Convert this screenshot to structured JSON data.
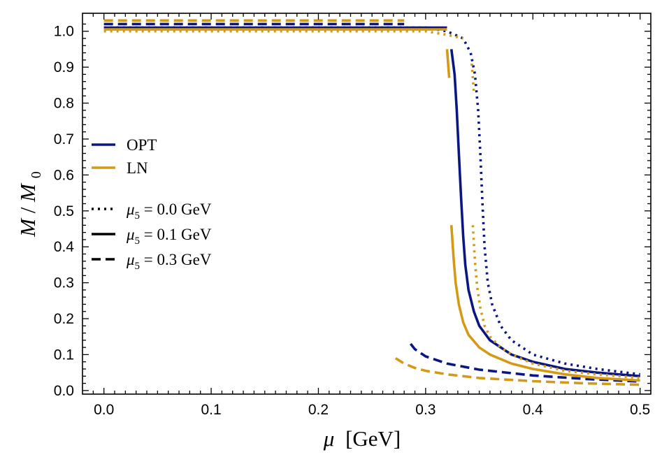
{
  "chart_data": {
    "type": "line",
    "title": "",
    "xlabel": "μ [GeV]",
    "xlabel_main": "μ",
    "xlabel_unit": "[GeV]",
    "ylabel": "M/M0",
    "ylabel_parts": {
      "m": "M",
      "slash": "/",
      "m0": "M",
      "sub": "0"
    },
    "xlim": [
      -0.02,
      0.51
    ],
    "ylim": [
      -0.01,
      1.05
    ],
    "xticks": [
      0.0,
      0.1,
      0.2,
      0.3,
      0.4,
      0.5
    ],
    "xtick_labels": [
      "0.0",
      "0.1",
      "0.2",
      "0.3",
      "0.4",
      "0.5"
    ],
    "yticks": [
      0.0,
      0.1,
      0.2,
      0.3,
      0.4,
      0.5,
      0.6,
      0.7,
      0.8,
      0.9,
      1.0
    ],
    "ytick_labels": [
      "0.0",
      "0.1",
      "0.2",
      "0.3",
      "0.4",
      "0.5",
      "0.6",
      "0.7",
      "0.8",
      "0.9",
      "1.0"
    ],
    "grid": false,
    "legend_position": "center-left",
    "legend_color": [
      {
        "name": "OPT",
        "color": "#0a1783"
      },
      {
        "name": "LN",
        "color": "#d49a16"
      }
    ],
    "legend_style": [
      {
        "sym": "μ",
        "sub": "5",
        "eq": " = 0.0 GeV",
        "dash": "dotted"
      },
      {
        "sym": "μ",
        "sub": "5",
        "eq": " = 0.1 GeV",
        "dash": "solid"
      },
      {
        "sym": "μ",
        "sub": "5",
        "eq": " = 0.3 GeV",
        "dash": "dashed"
      }
    ],
    "series": [
      {
        "model": "OPT",
        "mu5": "0.0 GeV",
        "color": "#0a1783",
        "dash": "dotted",
        "x": [
          0.0,
          0.1,
          0.2,
          0.3,
          0.32,
          0.335,
          0.342,
          0.346,
          0.349,
          0.351,
          0.353,
          0.355,
          0.358,
          0.362,
          0.37,
          0.38,
          0.4,
          0.43,
          0.46,
          0.5
        ],
        "y": [
          1.01,
          1.01,
          1.01,
          1.01,
          1.0,
          0.98,
          0.94,
          0.88,
          0.78,
          0.66,
          0.52,
          0.4,
          0.3,
          0.24,
          0.18,
          0.14,
          0.1,
          0.075,
          0.06,
          0.045
        ]
      },
      {
        "model": "OPT",
        "mu5": "0.1 GeV",
        "color": "#0a1783",
        "dash": "solid",
        "x": [
          0.0,
          0.1,
          0.2,
          0.3,
          0.32
        ],
        "y": [
          1.01,
          1.01,
          1.01,
          1.01,
          1.01
        ]
      },
      {
        "model": "OPT",
        "mu5": "0.1 GeV",
        "color": "#0a1783",
        "dash": "solid",
        "x": [
          0.324,
          0.327,
          0.329,
          0.331,
          0.333,
          0.335,
          0.337,
          0.34,
          0.345,
          0.35,
          0.36,
          0.38,
          0.4,
          0.43,
          0.46,
          0.5
        ],
        "y": [
          0.95,
          0.88,
          0.78,
          0.66,
          0.54,
          0.43,
          0.35,
          0.28,
          0.22,
          0.18,
          0.14,
          0.1,
          0.08,
          0.06,
          0.05,
          0.04
        ]
      },
      {
        "model": "OPT",
        "mu5": "0.3 GeV",
        "color": "#0a1783",
        "dash": "dashed",
        "x": [
          0.0,
          0.1,
          0.2,
          0.28
        ],
        "y": [
          1.02,
          1.02,
          1.02,
          1.02
        ]
      },
      {
        "model": "OPT",
        "mu5": "0.3 GeV",
        "color": "#0a1783",
        "dash": "dashed",
        "x": [
          0.286,
          0.29,
          0.3,
          0.32,
          0.35,
          0.4,
          0.45,
          0.5
        ],
        "y": [
          0.13,
          0.115,
          0.095,
          0.075,
          0.058,
          0.042,
          0.032,
          0.025
        ]
      },
      {
        "model": "LN",
        "mu5": "0.0 GeV",
        "color": "#d49a16",
        "dash": "dotted",
        "x": [
          0.0,
          0.1,
          0.2,
          0.3,
          0.32,
          0.335
        ],
        "y": [
          1.0,
          1.0,
          1.0,
          1.0,
          0.99,
          0.98
        ]
      },
      {
        "model": "LN",
        "mu5": "0.0 GeV",
        "color": "#d49a16",
        "dash": "dotted",
        "x": [
          0.343,
          0.344,
          0.345
        ],
        "y": [
          0.91,
          0.87,
          0.83
        ]
      },
      {
        "model": "LN",
        "mu5": "0.0 GeV",
        "color": "#d49a16",
        "dash": "dotted",
        "x": [
          0.344,
          0.346,
          0.348,
          0.351,
          0.355,
          0.36,
          0.37,
          0.38,
          0.4,
          0.43,
          0.46,
          0.5
        ],
        "y": [
          0.46,
          0.36,
          0.29,
          0.23,
          0.18,
          0.15,
          0.12,
          0.1,
          0.075,
          0.055,
          0.045,
          0.035
        ]
      },
      {
        "model": "LN",
        "mu5": "0.1 GeV",
        "color": "#d49a16",
        "dash": "solid",
        "x": [
          0.0,
          0.1,
          0.2,
          0.3,
          0.32
        ],
        "y": [
          1.005,
          1.005,
          1.005,
          1.005,
          1.005
        ]
      },
      {
        "model": "LN",
        "mu5": "0.1 GeV",
        "color": "#d49a16",
        "dash": "solid",
        "x": [
          0.32,
          0.322
        ],
        "y": [
          0.95,
          0.87
        ]
      },
      {
        "model": "LN",
        "mu5": "0.1 GeV",
        "color": "#d49a16",
        "dash": "solid",
        "x": [
          0.324,
          0.326,
          0.328,
          0.331,
          0.335,
          0.34,
          0.35,
          0.36,
          0.38,
          0.4,
          0.43,
          0.46,
          0.5
        ],
        "y": [
          0.46,
          0.37,
          0.3,
          0.24,
          0.19,
          0.155,
          0.12,
          0.1,
          0.075,
          0.06,
          0.045,
          0.035,
          0.028
        ]
      },
      {
        "model": "LN",
        "mu5": "0.3 GeV",
        "color": "#d49a16",
        "dash": "dashed",
        "x": [
          0.0,
          0.1,
          0.2,
          0.28
        ],
        "y": [
          1.03,
          1.03,
          1.03,
          1.03
        ]
      },
      {
        "model": "LN",
        "mu5": "0.3 GeV",
        "color": "#d49a16",
        "dash": "dashed",
        "x": [
          0.272,
          0.28,
          0.29,
          0.3,
          0.32,
          0.35,
          0.4,
          0.45,
          0.5
        ],
        "y": [
          0.09,
          0.075,
          0.063,
          0.055,
          0.045,
          0.035,
          0.026,
          0.02,
          0.016
        ]
      }
    ]
  }
}
